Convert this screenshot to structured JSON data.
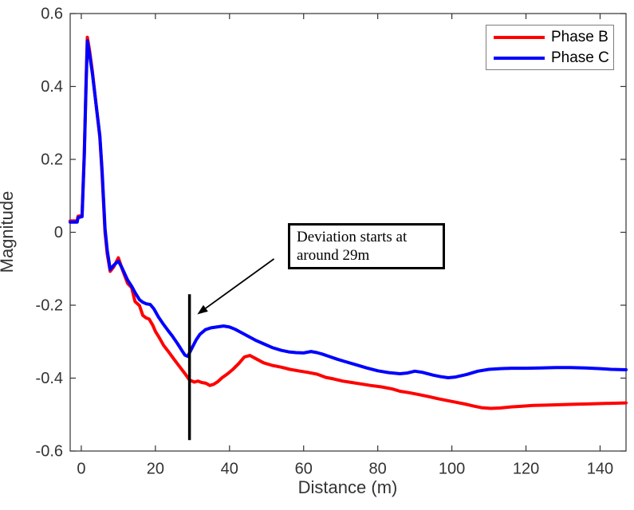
{
  "figure": {
    "background": "#ffffff",
    "axis_color": "#333333"
  },
  "chart_data": {
    "type": "line",
    "title": "",
    "xlabel": "Distance (m)",
    "ylabel": "Magnitude",
    "xlim": [
      -3,
      147
    ],
    "ylim": [
      -0.6,
      0.6
    ],
    "xticks": [
      0,
      20,
      40,
      60,
      80,
      100,
      120,
      140
    ],
    "yticks": [
      -0.6,
      -0.4,
      -0.2,
      0,
      0.2,
      0.4,
      0.6
    ],
    "grid": false,
    "legend": {
      "position": "northeast"
    },
    "series": [
      {
        "name": "Phase B",
        "color": "#ff0000",
        "points": [
          [
            -3,
            0.031
          ],
          [
            -1.1,
            0.031
          ],
          [
            -0.9,
            0.044
          ],
          [
            0.2,
            0.046
          ],
          [
            0.8,
            0.22
          ],
          [
            1.3,
            0.42
          ],
          [
            1.63,
            0.535
          ],
          [
            2.2,
            0.5
          ],
          [
            3,
            0.44
          ],
          [
            4,
            0.35
          ],
          [
            5,
            0.26
          ],
          [
            5.6,
            0.16
          ],
          [
            6.4,
            0
          ],
          [
            7,
            -0.06
          ],
          [
            7.8,
            -0.107
          ],
          [
            8.8,
            -0.094
          ],
          [
            10,
            -0.07
          ],
          [
            11,
            -0.1
          ],
          [
            12.5,
            -0.14
          ],
          [
            13.6,
            -0.152
          ],
          [
            14.5,
            -0.19
          ],
          [
            15.7,
            -0.201
          ],
          [
            16.6,
            -0.228
          ],
          [
            17.5,
            -0.235
          ],
          [
            18.3,
            -0.238
          ],
          [
            19.3,
            -0.255
          ],
          [
            20,
            -0.272
          ],
          [
            21,
            -0.288
          ],
          [
            22.2,
            -0.31
          ],
          [
            23.5,
            -0.327
          ],
          [
            25,
            -0.348
          ],
          [
            26.5,
            -0.368
          ],
          [
            28,
            -0.388
          ],
          [
            29.2,
            -0.405
          ],
          [
            30.5,
            -0.411
          ],
          [
            31.5,
            -0.408
          ],
          [
            32.5,
            -0.412
          ],
          [
            33.6,
            -0.414
          ],
          [
            34.7,
            -0.42
          ],
          [
            35.7,
            -0.417
          ],
          [
            36.8,
            -0.41
          ],
          [
            38,
            -0.399
          ],
          [
            39.5,
            -0.388
          ],
          [
            41,
            -0.375
          ],
          [
            42.5,
            -0.36
          ],
          [
            44,
            -0.342
          ],
          [
            45.5,
            -0.338
          ],
          [
            47,
            -0.346
          ],
          [
            49.2,
            -0.358
          ],
          [
            51.5,
            -0.365
          ],
          [
            54,
            -0.37
          ],
          [
            56.3,
            -0.376
          ],
          [
            58.5,
            -0.38
          ],
          [
            61,
            -0.384
          ],
          [
            63.6,
            -0.389
          ],
          [
            66,
            -0.398
          ],
          [
            68,
            -0.402
          ],
          [
            70.5,
            -0.408
          ],
          [
            73,
            -0.412
          ],
          [
            75.5,
            -0.416
          ],
          [
            78,
            -0.42
          ],
          [
            81,
            -0.424
          ],
          [
            84,
            -0.43
          ],
          [
            86,
            -0.436
          ],
          [
            88.5,
            -0.44
          ],
          [
            91,
            -0.445
          ],
          [
            93.5,
            -0.45
          ],
          [
            96,
            -0.456
          ],
          [
            98.5,
            -0.461
          ],
          [
            101,
            -0.466
          ],
          [
            103.5,
            -0.471
          ],
          [
            106,
            -0.477
          ],
          [
            108,
            -0.481
          ],
          [
            110.5,
            -0.483
          ],
          [
            113,
            -0.482
          ],
          [
            116,
            -0.479
          ],
          [
            119,
            -0.477
          ],
          [
            122,
            -0.475
          ],
          [
            125.5,
            -0.474
          ],
          [
            129,
            -0.473
          ],
          [
            132.5,
            -0.472
          ],
          [
            136,
            -0.471
          ],
          [
            139.5,
            -0.47
          ],
          [
            143,
            -0.469
          ],
          [
            147,
            -0.468
          ]
        ]
      },
      {
        "name": "Phase C",
        "color": "#0000ff",
        "points": [
          [
            -3,
            0.028
          ],
          [
            -1.1,
            0.028
          ],
          [
            -0.9,
            0.04
          ],
          [
            0.2,
            0.043
          ],
          [
            0.8,
            0.21
          ],
          [
            1.3,
            0.41
          ],
          [
            1.65,
            0.525
          ],
          [
            2.2,
            0.49
          ],
          [
            3,
            0.435
          ],
          [
            4,
            0.35
          ],
          [
            5,
            0.265
          ],
          [
            5.6,
            0.17
          ],
          [
            6.4,
            0.01
          ],
          [
            7,
            -0.05
          ],
          [
            7.8,
            -0.102
          ],
          [
            8.8,
            -0.09
          ],
          [
            10,
            -0.079
          ],
          [
            11,
            -0.098
          ],
          [
            12.5,
            -0.131
          ],
          [
            13.6,
            -0.148
          ],
          [
            14.5,
            -0.165
          ],
          [
            15.7,
            -0.185
          ],
          [
            16.6,
            -0.192
          ],
          [
            17.5,
            -0.196
          ],
          [
            18.6,
            -0.198
          ],
          [
            19.6,
            -0.21
          ],
          [
            20.8,
            -0.232
          ],
          [
            22,
            -0.25
          ],
          [
            23.3,
            -0.268
          ],
          [
            24.6,
            -0.285
          ],
          [
            26,
            -0.306
          ],
          [
            27.2,
            -0.325
          ],
          [
            28,
            -0.337
          ],
          [
            28.7,
            -0.34
          ],
          [
            29.2,
            -0.331
          ],
          [
            30,
            -0.315
          ],
          [
            31,
            -0.295
          ],
          [
            32,
            -0.28
          ],
          [
            33.5,
            -0.267
          ],
          [
            35,
            -0.262
          ],
          [
            36.5,
            -0.26
          ],
          [
            38.4,
            -0.257
          ],
          [
            40,
            -0.26
          ],
          [
            41.5,
            -0.266
          ],
          [
            43,
            -0.274
          ],
          [
            45,
            -0.285
          ],
          [
            47,
            -0.296
          ],
          [
            49,
            -0.305
          ],
          [
            51.5,
            -0.316
          ],
          [
            54,
            -0.324
          ],
          [
            56,
            -0.328
          ],
          [
            58,
            -0.33
          ],
          [
            60,
            -0.331
          ],
          [
            62,
            -0.327
          ],
          [
            63.6,
            -0.33
          ],
          [
            65,
            -0.334
          ],
          [
            67,
            -0.341
          ],
          [
            69,
            -0.348
          ],
          [
            71,
            -0.354
          ],
          [
            74,
            -0.363
          ],
          [
            77,
            -0.372
          ],
          [
            80,
            -0.38
          ],
          [
            83,
            -0.385
          ],
          [
            86,
            -0.388
          ],
          [
            88,
            -0.386
          ],
          [
            90,
            -0.381
          ],
          [
            92,
            -0.384
          ],
          [
            95,
            -0.392
          ],
          [
            97,
            -0.396
          ],
          [
            99,
            -0.399
          ],
          [
            101,
            -0.397
          ],
          [
            104,
            -0.39
          ],
          [
            107,
            -0.381
          ],
          [
            110,
            -0.376
          ],
          [
            113,
            -0.374
          ],
          [
            116,
            -0.373
          ],
          [
            120,
            -0.373
          ],
          [
            124,
            -0.372
          ],
          [
            128,
            -0.371
          ],
          [
            132,
            -0.371
          ],
          [
            136,
            -0.372
          ],
          [
            140,
            -0.374
          ],
          [
            143,
            -0.376
          ],
          [
            147,
            -0.377
          ]
        ]
      }
    ],
    "annotation": {
      "line1": "Deviation starts at",
      "line2": "around 29m",
      "vline": {
        "x": 29.2,
        "y_from": -0.57,
        "y_to": -0.17,
        "color": "#000000"
      },
      "arrow": {
        "tail": [
          52,
          -0.073
        ],
        "head": [
          31.3,
          -0.225
        ],
        "color": "#000000"
      }
    }
  }
}
